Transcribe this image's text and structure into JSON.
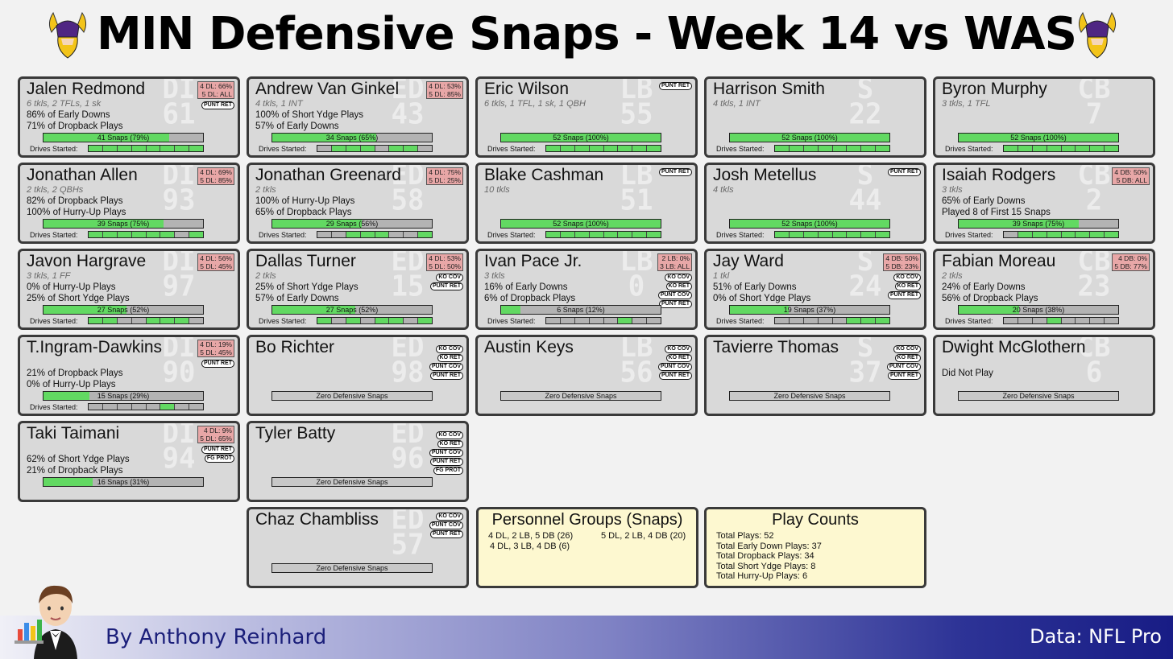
{
  "title": "MIN Defensive Snaps - Week 14 vs WAS",
  "footer": {
    "byline": "By Anthony Reinhard",
    "source": "Data: NFL Pro"
  },
  "drives_label": "Drives Started:",
  "cards": [
    {
      "col": 0,
      "row": 0,
      "name": "Jalen Redmond",
      "pos": "DI",
      "num": "61",
      "stats": "6 tkls, 2 TFLs, 1 sk",
      "notes": [
        "86% of Early Downs",
        "71% of Dropback Plays"
      ],
      "align": [
        "4 DL: 66%",
        "5 DL: ALL"
      ],
      "tags": [
        "PUNT RET"
      ],
      "snaps": "41 Snaps (79%)",
      "pct": 79,
      "drives": [
        1,
        1,
        1,
        1,
        1,
        1,
        1,
        1
      ]
    },
    {
      "col": 1,
      "row": 0,
      "name": "Andrew Van Ginkel",
      "pos": "ED",
      "num": "43",
      "stats": "4 tkls, 1 INT",
      "notes": [
        "100% of Short Ydge Plays",
        "57% of Early Downs"
      ],
      "align": [
        "4 DL: 53%",
        "5 DL: 85%"
      ],
      "tags": [],
      "snaps": "34 Snaps (65%)",
      "pct": 65,
      "drives": [
        0,
        1,
        1,
        1,
        0,
        1,
        1,
        0
      ]
    },
    {
      "col": 2,
      "row": 0,
      "name": "Eric Wilson",
      "pos": "LB",
      "num": "55",
      "stats": "6 tkls, 1 TFL, 1 sk, 1 QBH",
      "notes": [],
      "align": [],
      "tags": [
        "PUNT RET"
      ],
      "snaps": "52 Snaps (100%)",
      "pct": 100,
      "drives": [
        1,
        1,
        1,
        1,
        1,
        1,
        1,
        1
      ]
    },
    {
      "col": 3,
      "row": 0,
      "name": "Harrison Smith",
      "pos": "S",
      "num": "22",
      "stats": "4 tkls, 1 INT",
      "notes": [],
      "align": [],
      "tags": [],
      "snaps": "52 Snaps (100%)",
      "pct": 100,
      "drives": [
        1,
        1,
        1,
        1,
        1,
        1,
        1,
        1
      ]
    },
    {
      "col": 4,
      "row": 0,
      "name": "Byron Murphy",
      "pos": "CB",
      "num": "7",
      "stats": "3 tkls, 1 TFL",
      "notes": [],
      "align": [],
      "tags": [],
      "snaps": "52 Snaps (100%)",
      "pct": 100,
      "drives": [
        1,
        1,
        1,
        1,
        1,
        1,
        1,
        1
      ]
    },
    {
      "col": 0,
      "row": 1,
      "name": "Jonathan Allen",
      "pos": "DI",
      "num": "93",
      "stats": "2 tkls, 2 QBHs",
      "notes": [
        "82% of Dropback Plays",
        "100% of Hurry-Up Plays"
      ],
      "align": [
        "4 DL: 69%",
        "5 DL: 85%"
      ],
      "tags": [],
      "snaps": "39 Snaps (75%)",
      "pct": 75,
      "drives": [
        1,
        1,
        1,
        1,
        1,
        1,
        0,
        1
      ]
    },
    {
      "col": 1,
      "row": 1,
      "name": "Jonathan Greenard",
      "pos": "ED",
      "num": "58",
      "stats": "2 tkls",
      "notes": [
        "100% of Hurry-Up Plays",
        "65% of Dropback Plays"
      ],
      "align": [
        "4 DL: 75%",
        "5 DL: 25%"
      ],
      "tags": [],
      "snaps": "29 Snaps (56%)",
      "pct": 56,
      "drives": [
        0,
        0,
        1,
        1,
        1,
        0,
        0,
        1
      ]
    },
    {
      "col": 2,
      "row": 1,
      "name": "Blake Cashman",
      "pos": "LB",
      "num": "51",
      "stats": "10 tkls",
      "notes": [],
      "align": [],
      "tags": [
        "PUNT RET"
      ],
      "snaps": "52 Snaps (100%)",
      "pct": 100,
      "drives": [
        1,
        1,
        1,
        1,
        1,
        1,
        1,
        1
      ]
    },
    {
      "col": 3,
      "row": 1,
      "name": "Josh Metellus",
      "pos": "S",
      "num": "44",
      "stats": "4 tkls",
      "notes": [],
      "align": [],
      "tags": [
        "PUNT RET"
      ],
      "snaps": "52 Snaps (100%)",
      "pct": 100,
      "drives": [
        1,
        1,
        1,
        1,
        1,
        1,
        1,
        1
      ]
    },
    {
      "col": 4,
      "row": 1,
      "name": "Isaiah Rodgers",
      "pos": "CB",
      "num": "2",
      "stats": "3 tkls",
      "notes": [
        "65% of Early Downs",
        "Played 8 of First 15 Snaps"
      ],
      "align": [
        "4 DB: 50%",
        "5 DB: ALL"
      ],
      "tags": [],
      "snaps": "39 Snaps (75%)",
      "pct": 75,
      "drives": [
        0,
        1,
        1,
        1,
        1,
        1,
        1,
        1
      ]
    },
    {
      "col": 0,
      "row": 2,
      "name": "Javon Hargrave",
      "pos": "DI",
      "num": "97",
      "stats": "3 tkls, 1 FF",
      "notes": [
        "0% of Hurry-Up Plays",
        "25% of Short Ydge Plays"
      ],
      "align": [
        "4 DL: 56%",
        "5 DL: 45%"
      ],
      "tags": [],
      "snaps": "27 Snaps (52%)",
      "pct": 52,
      "drives": [
        1,
        1,
        0,
        0,
        1,
        1,
        1,
        0
      ]
    },
    {
      "col": 1,
      "row": 2,
      "name": "Dallas Turner",
      "pos": "ED",
      "num": "15",
      "stats": "2 tkls",
      "notes": [
        "25% of Short Ydge Plays",
        "57% of Early Downs"
      ],
      "align": [
        "4 DL: 53%",
        "5 DL: 50%"
      ],
      "tags": [
        "KO COV",
        "PUNT RET"
      ],
      "snaps": "27 Snaps (52%)",
      "pct": 52,
      "drives": [
        1,
        0,
        1,
        0,
        1,
        1,
        0,
        1
      ]
    },
    {
      "col": 2,
      "row": 2,
      "name": "Ivan Pace Jr.",
      "pos": "LB",
      "num": "0",
      "stats": "3 tkls",
      "notes": [
        "16% of Early Downs",
        "6% of Dropback Plays"
      ],
      "align": [
        "2 LB: 0%",
        "3 LB: ALL"
      ],
      "tags": [
        "KO COV",
        "KO RET",
        "PUNT COV",
        "PUNT RET"
      ],
      "snaps": "6 Snaps (12%)",
      "pct": 12,
      "drives": [
        0,
        0,
        0,
        0,
        0,
        1,
        0,
        0
      ]
    },
    {
      "col": 3,
      "row": 2,
      "name": "Jay Ward",
      "pos": "S",
      "num": "24",
      "stats": "1 tkl",
      "notes": [
        "51% of Early Downs",
        "0% of Short Ydge Plays"
      ],
      "align": [
        "4 DB: 50%",
        "5 DB: 23%"
      ],
      "tags": [
        "KO COV",
        "KO RET",
        "PUNT RET"
      ],
      "snaps": "19 Snaps (37%)",
      "pct": 37,
      "drives": [
        0,
        0,
        0,
        0,
        0,
        1,
        1,
        1
      ]
    },
    {
      "col": 4,
      "row": 2,
      "name": "Fabian Moreau",
      "pos": "CB",
      "num": "23",
      "stats": "2 tkls",
      "notes": [
        "24% of Early Downs",
        "56% of Dropback Plays"
      ],
      "align": [
        "4 DB: 0%",
        "5 DB: 77%"
      ],
      "tags": [],
      "snaps": "20 Snaps (38%)",
      "pct": 38,
      "drives": [
        0,
        0,
        0,
        1,
        0,
        0,
        0,
        0
      ]
    },
    {
      "col": 0,
      "row": 3,
      "name": "T.Ingram-Dawkins",
      "pos": "DI",
      "num": "90",
      "stats": "",
      "notes": [
        "21% of Dropback Plays",
        "0% of Hurry-Up Plays"
      ],
      "align": [
        "4 DL: 19%",
        "5 DL: 45%"
      ],
      "tags": [
        "PUNT RET"
      ],
      "snaps": "15 Snaps (29%)",
      "pct": 29,
      "drives": [
        0,
        0,
        0,
        0,
        0,
        1,
        0,
        0
      ]
    },
    {
      "col": 1,
      "row": 3,
      "name": "Bo Richter",
      "pos": "ED",
      "num": "98",
      "stats": "",
      "notes": [],
      "align": [],
      "tags": [
        "KO COV",
        "KO RET",
        "PUNT COV",
        "PUNT RET"
      ],
      "zero": "Zero Defensive Snaps"
    },
    {
      "col": 2,
      "row": 3,
      "name": "Austin Keys",
      "pos": "LB",
      "num": "56",
      "stats": "",
      "notes": [],
      "align": [],
      "tags": [
        "KO COV",
        "KO RET",
        "PUNT COV",
        "PUNT RET"
      ],
      "zero": "Zero Defensive Snaps"
    },
    {
      "col": 3,
      "row": 3,
      "name": "Tavierre Thomas",
      "pos": "S",
      "num": "37",
      "stats": "",
      "notes": [],
      "align": [],
      "tags": [
        "KO COV",
        "KO RET",
        "PUNT COV",
        "PUNT RET"
      ],
      "zero": "Zero Defensive Snaps"
    },
    {
      "col": 4,
      "row": 3,
      "name": "Dwight McGlothern",
      "pos": "CB",
      "num": "6",
      "stats": "",
      "notes": [
        "Did Not Play"
      ],
      "align": [],
      "tags": [],
      "zero": "Zero Defensive Snaps"
    },
    {
      "col": 0,
      "row": 4,
      "name": "Taki Taimani",
      "pos": "DI",
      "num": "94",
      "stats": "",
      "notes": [
        "62% of Short Ydge Plays",
        "21% of Dropback Plays"
      ],
      "align": [
        "4 DL: 9%",
        "5 DL: 65%"
      ],
      "tags": [
        "PUNT RET",
        "FG PROT"
      ],
      "snaps": "16 Snaps (31%)",
      "pct": 31,
      "drives": []
    },
    {
      "col": 1,
      "row": 4,
      "name": "Tyler Batty",
      "pos": "ED",
      "num": "96",
      "stats": "",
      "notes": [],
      "align": [],
      "tags": [
        "KO COV",
        "KO RET",
        "PUNT COV",
        "PUNT RET",
        "FG PROT"
      ],
      "zero": "Zero Defensive Snaps"
    },
    {
      "col": 1,
      "row": 5,
      "name": "Chaz Chambliss",
      "pos": "ED",
      "num": "57",
      "stats": "",
      "notes": [],
      "align": [],
      "tags": [
        "KO COV",
        "PUNT COV",
        "PUNT RET"
      ],
      "zero": "Zero Defensive Snaps"
    }
  ],
  "personnel": {
    "title": "Personnel Groups (Snaps)",
    "groups": [
      "4 DL, 2 LB, 5 DB (26)",
      "5 DL, 2 LB, 4 DB (20)",
      "4 DL, 3 LB, 4 DB (6)"
    ]
  },
  "play_counts": {
    "title": "Play Counts",
    "lines": [
      "Total Plays: 52",
      "Total Early Down Plays: 37",
      "Total Dropback Plays: 34",
      "Total Short Ydge Plays: 8",
      "Total Hurry-Up Plays: 6"
    ]
  },
  "colors": {
    "card": "#d9d9d9",
    "snap_fill": "#62d962",
    "align_box": "#e8a7a7",
    "info_box": "#fdf8d0",
    "footer_dark": "#181c85"
  },
  "icons": {
    "logo": "vikings-logo-icon",
    "mascot": "waiter-with-chart-icon"
  }
}
